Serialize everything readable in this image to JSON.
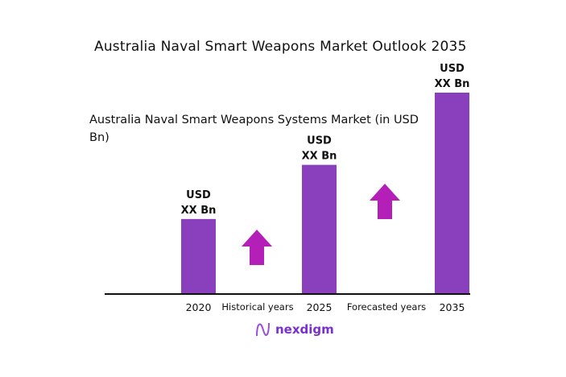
{
  "chart_data": {
    "type": "bar",
    "title": "Australia Naval Smart Weapons Market Outlook 2035",
    "subtitle": "Australia Naval Smart Weapons Systems Market (in USD Bn)",
    "categories": [
      "2020",
      "2025",
      "2035"
    ],
    "values_relative": [
      0.37,
      0.64,
      1.0
    ],
    "data_labels": [
      {
        "line1": "USD",
        "line2": "XX Bn"
      },
      {
        "line1": "USD",
        "line2": "XX Bn"
      },
      {
        "line1": "USD",
        "line2": "XX Bn"
      }
    ],
    "period_labels": [
      "Historical years",
      "Forecasted years"
    ],
    "bar_color": "#8a40bc",
    "arrow_color": "#b41fb8",
    "grid": false,
    "legend": "none"
  },
  "logo": {
    "text": "nexdigm",
    "color": "#7a2fd0"
  }
}
